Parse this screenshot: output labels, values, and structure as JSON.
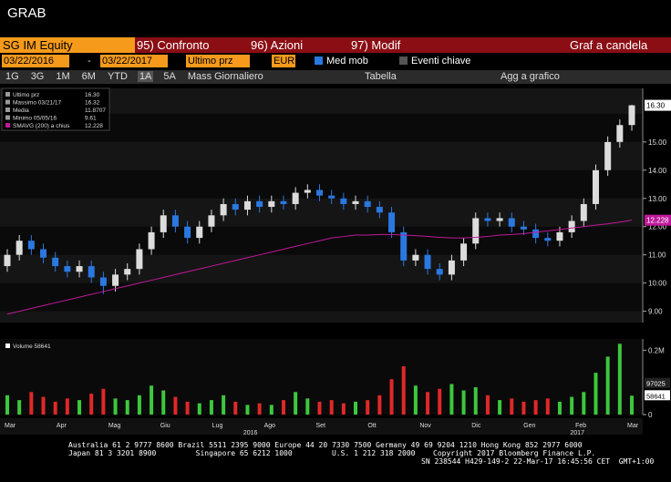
{
  "header": {
    "title": "GRAB"
  },
  "toolbar": {
    "security": "SG IM Equity",
    "buttons": [
      "95) Confronto",
      "96) Azioni",
      "97) Modif"
    ],
    "chart_type": "Graf a candela"
  },
  "controls": {
    "start_date": "03/22/2016",
    "separator": "-",
    "end_date": "03/22/2017",
    "field": "Ultimo prz",
    "currency": "EUR",
    "moving_avg": "Med mob",
    "events": "Eventi chiave",
    "periods": [
      "1G",
      "3G",
      "1M",
      "6M",
      "YTD",
      "1A",
      "5A",
      "Mass"
    ],
    "frequency": "Giornaliero",
    "table": "Tabella",
    "add": "Agg a grafico"
  },
  "legend": [
    {
      "name": "Ultimo prz",
      "value": "16.30"
    },
    {
      "name": "Massimo 03/21/17",
      "value": "16.32"
    },
    {
      "name": "Media",
      "value": "11.8707"
    },
    {
      "name": "Minimo 05/05/16",
      "value": "9.61"
    },
    {
      "name": "SMAVG (200) a chius",
      "value": "12.228"
    }
  ],
  "chart_data": {
    "type": "candlestick",
    "up_color": "#dcdcdc",
    "down_color": "#2a78e0",
    "open": [
      10.6,
      11.0,
      11.5,
      11.2,
      10.9,
      10.6,
      10.4,
      10.6,
      10.2,
      9.9,
      10.3,
      10.5,
      11.2,
      11.8,
      12.4,
      12.0,
      11.6,
      12.0,
      12.4,
      12.8,
      12.6,
      12.9,
      12.7,
      12.9,
      12.8,
      13.2,
      13.3,
      13.1,
      13.0,
      12.8,
      12.9,
      12.7,
      12.5,
      11.8,
      10.8,
      11.0,
      10.5,
      10.3,
      10.8,
      11.4,
      12.3,
      12.2,
      12.3,
      12.0,
      11.9,
      11.6,
      11.5,
      11.8,
      12.2,
      12.8,
      14.0,
      15.0,
      15.6
    ],
    "high": [
      11.2,
      11.7,
      11.7,
      11.4,
      11.1,
      10.8,
      10.8,
      10.8,
      10.4,
      10.5,
      10.7,
      11.4,
      12.0,
      12.6,
      12.6,
      12.2,
      12.2,
      12.6,
      13.0,
      13.0,
      13.1,
      13.1,
      13.1,
      13.1,
      13.4,
      13.5,
      13.5,
      13.3,
      13.2,
      13.1,
      13.1,
      12.9,
      12.7,
      12.0,
      11.2,
      11.2,
      10.7,
      11.0,
      11.6,
      12.5,
      12.5,
      12.5,
      12.5,
      12.2,
      12.1,
      11.8,
      12.0,
      12.4,
      13.0,
      14.2,
      15.2,
      15.8,
      16.32
    ],
    "low": [
      10.4,
      10.8,
      11.0,
      10.7,
      10.4,
      10.2,
      10.2,
      10.0,
      9.61,
      9.7,
      10.1,
      10.3,
      11.0,
      11.6,
      11.8,
      11.4,
      11.4,
      11.8,
      12.2,
      12.4,
      12.4,
      12.5,
      12.5,
      12.6,
      12.6,
      13.0,
      12.9,
      12.8,
      12.6,
      12.6,
      12.5,
      12.3,
      11.6,
      10.6,
      10.6,
      10.3,
      10.1,
      10.1,
      10.6,
      11.2,
      12.0,
      12.0,
      11.8,
      11.7,
      11.4,
      11.3,
      11.3,
      11.6,
      12.0,
      12.6,
      13.8,
      14.8,
      15.4
    ],
    "close": [
      11.0,
      11.5,
      11.2,
      10.9,
      10.6,
      10.4,
      10.6,
      10.2,
      9.9,
      10.3,
      10.5,
      11.2,
      11.8,
      12.4,
      12.0,
      11.6,
      12.0,
      12.4,
      12.8,
      12.6,
      12.9,
      12.7,
      12.9,
      12.8,
      13.2,
      13.3,
      13.1,
      13.0,
      12.8,
      12.9,
      12.7,
      12.5,
      11.8,
      10.8,
      11.0,
      10.5,
      10.3,
      10.8,
      11.4,
      12.3,
      12.2,
      12.3,
      12.0,
      11.9,
      11.6,
      11.5,
      11.8,
      12.2,
      12.8,
      14.0,
      15.0,
      15.6,
      16.3
    ],
    "sma": {
      "color": "#c0189a",
      "values": [
        8.9,
        9.0,
        9.1,
        9.2,
        9.3,
        9.4,
        9.5,
        9.6,
        9.7,
        9.8,
        9.9,
        10.0,
        10.1,
        10.2,
        10.3,
        10.4,
        10.5,
        10.6,
        10.7,
        10.8,
        10.9,
        11.0,
        11.1,
        11.2,
        11.3,
        11.4,
        11.5,
        11.6,
        11.65,
        11.7,
        11.7,
        11.72,
        11.72,
        11.7,
        11.68,
        11.65,
        11.62,
        11.6,
        11.6,
        11.62,
        11.65,
        11.7,
        11.72,
        11.75,
        11.8,
        11.85,
        11.9,
        11.95,
        12.0,
        12.05,
        12.1,
        12.16,
        12.228
      ]
    },
    "ylim": [
      8.6,
      16.9
    ],
    "yticks": [
      {
        "value": 9,
        "label": "9.00"
      },
      {
        "value": 10,
        "label": "10.00"
      },
      {
        "value": 11,
        "label": "11.00"
      },
      {
        "value": 12,
        "label": "12.00"
      },
      {
        "value": 13,
        "label": "13.00"
      },
      {
        "value": 14,
        "label": "14.00"
      },
      {
        "value": 15,
        "label": "15.00"
      }
    ],
    "volume": {
      "title": "Volume 58641",
      "up_color": "#3cc83c",
      "down_color": "#e02828",
      "values": [
        60000,
        45000,
        70000,
        55000,
        40000,
        50000,
        45000,
        65000,
        80000,
        50000,
        45000,
        60000,
        90000,
        75000,
        55000,
        40000,
        35000,
        45000,
        60000,
        40000,
        30000,
        35000,
        30000,
        45000,
        70000,
        50000,
        40000,
        45000,
        35000,
        40000,
        45000,
        60000,
        110000,
        150000,
        90000,
        70000,
        80000,
        95000,
        75000,
        85000,
        60000,
        45000,
        50000,
        40000,
        45000,
        50000,
        40000,
        55000,
        70000,
        130000,
        180000,
        220000,
        58641
      ],
      "ylim": [
        0,
        235000
      ],
      "yticks": [
        {
          "value": 200000,
          "label": "0.2M"
        },
        0
      ],
      "markers": [
        97025,
        58641
      ]
    },
    "month_labels": [
      "Mar",
      "Apr",
      "Mag",
      "Giu",
      "Lug",
      "Ago",
      "Set",
      "Ott",
      "Nov",
      "Dic",
      "Gen",
      "Feb",
      "Mar"
    ],
    "year_labels": [
      "2016",
      "2017"
    ]
  },
  "footer": {
    "lines": [
      "Australia 61 2 9777 8600 Brazil 5511 2395 9000 Europe 44 20 7330 7500 Germany 49 69 9204 1210 Hong Kong 852 2977 6000",
      "Japan 81 3 3201 8900         Singapore 65 6212 1000         U.S. 1 212 318 2000",
      "Copyright 2017 Bloomberg Finance L.P.",
      "SN 238544 H429-149-2 22-Mar-17 16:45:56 CET  GMT+1:00"
    ]
  }
}
